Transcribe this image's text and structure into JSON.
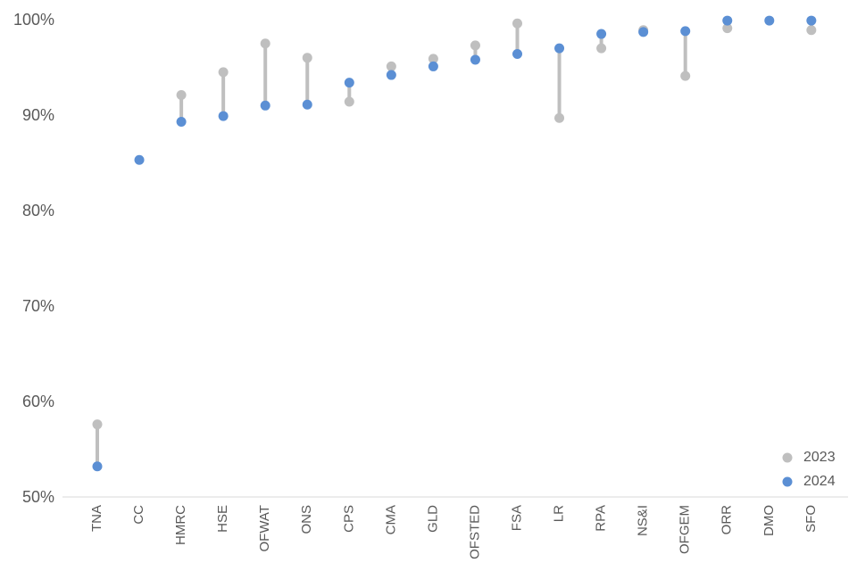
{
  "chart_data": {
    "type": "scatter",
    "categories": [
      "TNA",
      "CC",
      "HMRC",
      "HSE",
      "OFWAT",
      "ONS",
      "CPS",
      "CMA",
      "GLD",
      "OFSTED",
      "FSA",
      "LR",
      "RPA",
      "NS&I",
      "OFGEM",
      "ORR",
      "DMO",
      "SFO"
    ],
    "series": [
      {
        "name": "2023",
        "color": "#bfbfbf",
        "values": [
          57.6,
          null,
          92.1,
          94.5,
          97.5,
          96.0,
          91.4,
          95.1,
          95.9,
          97.3,
          99.6,
          89.7,
          97.0,
          98.9,
          94.1,
          99.1,
          null,
          98.9
        ]
      },
      {
        "name": "2024",
        "color": "#5b8fd4",
        "values": [
          53.2,
          85.3,
          89.3,
          89.9,
          91.0,
          91.1,
          93.4,
          94.2,
          95.1,
          95.8,
          96.4,
          97.0,
          98.5,
          98.7,
          98.8,
          99.9,
          99.9,
          99.9
        ]
      }
    ],
    "connector_color": "#bfbfbf",
    "ylim": [
      50,
      100
    ],
    "yticks": [
      "50%",
      "60%",
      "70%",
      "80%",
      "90%",
      "100%"
    ],
    "grid": false,
    "legend": "bottom-right"
  }
}
